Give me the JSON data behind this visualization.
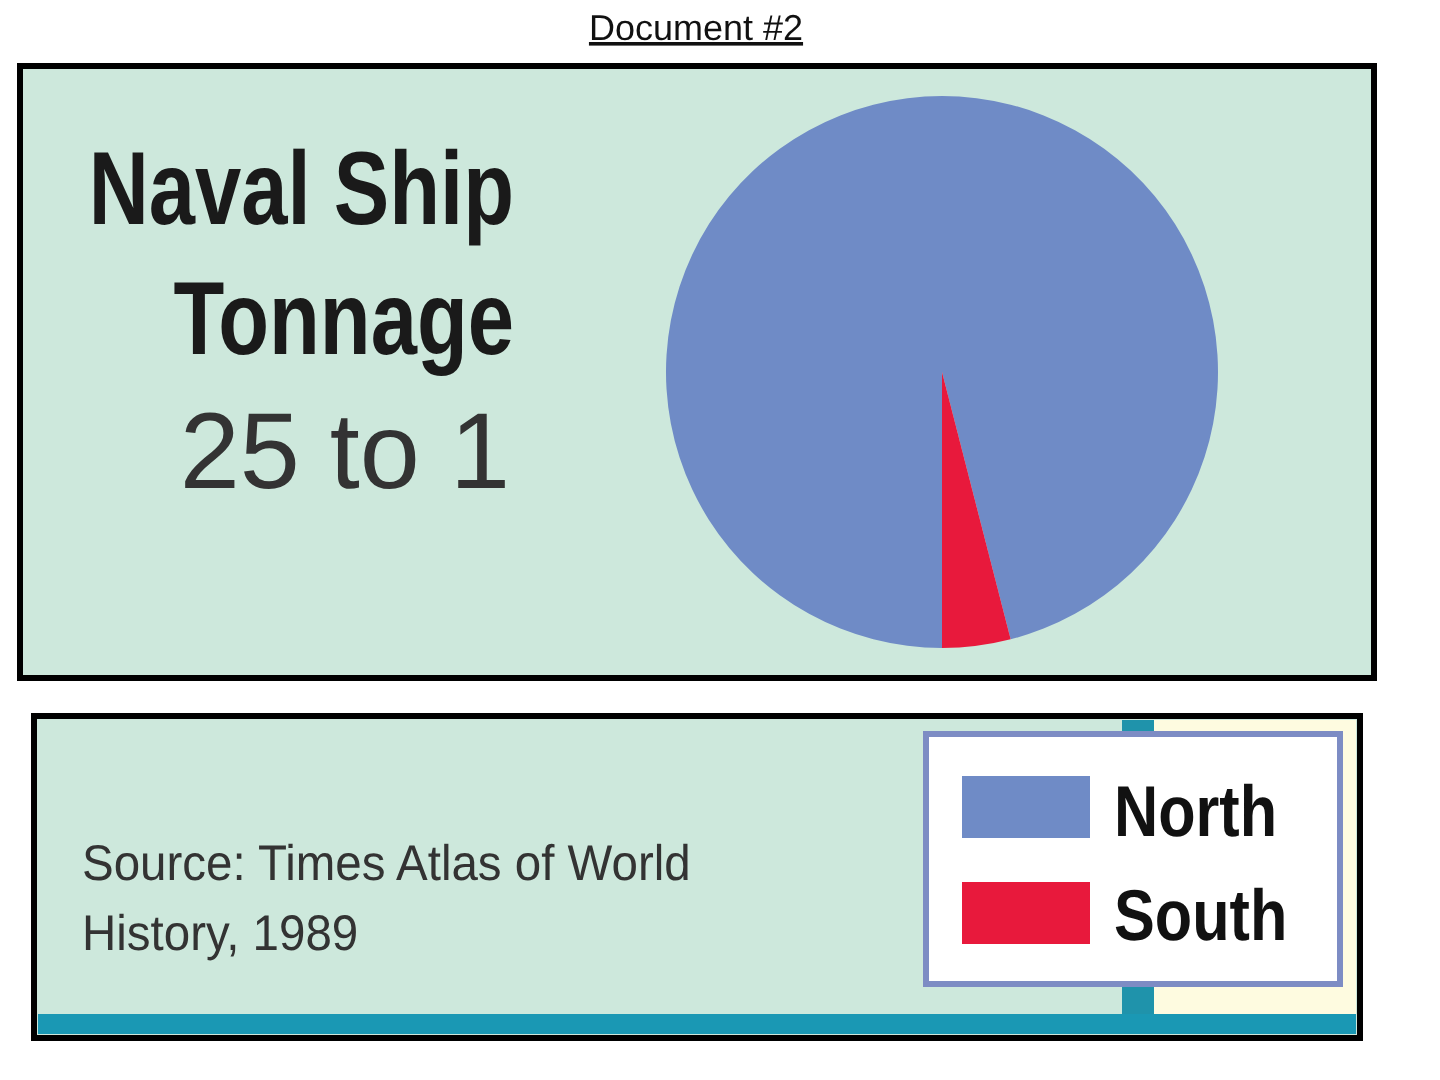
{
  "chart_data": {
    "type": "pie",
    "title": "Naval Ship Tonnage",
    "subtitle": "25 to 1",
    "categories": [
      "North",
      "South"
    ],
    "values": [
      96,
      4
    ],
    "colors": [
      "#6f8bc6",
      "#e8193c"
    ],
    "legend": "bottom right",
    "annotations": [
      "Document #2",
      "Source: Times Atlas of World History, 1989"
    ]
  }
}
